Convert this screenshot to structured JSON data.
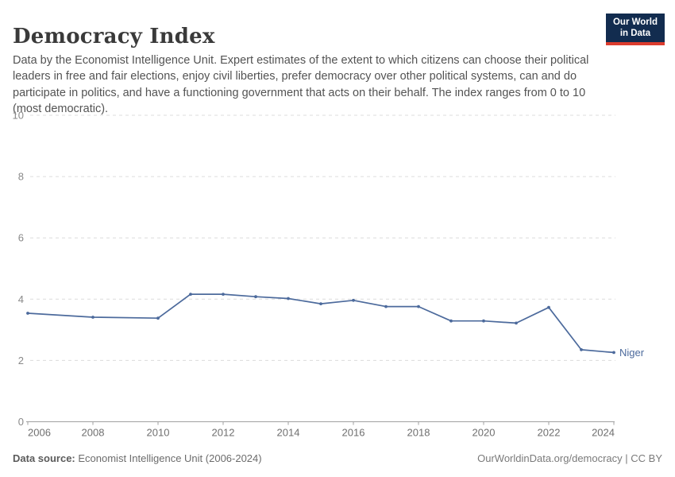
{
  "header": {
    "title": "Democracy Index",
    "subtitle": "Data by the Economist Intelligence Unit. Expert estimates of the extent to which citizens can choose their political leaders in free and fair elections, enjoy civil liberties, prefer democracy over other political systems, can and do participate in politics, and have a functioning government that acts on their behalf. The index ranges from 0 to 10 (most democratic).",
    "logo": {
      "line1": "Our World",
      "line2": "in Data",
      "bg_color": "#122c4f",
      "bar_color": "#dc3c2e"
    }
  },
  "footer": {
    "source_label": "Data source:",
    "source_value": " Economist Intelligence Unit (2006-2024)",
    "right_text": "OurWorldinData.org/democracy | CC BY"
  },
  "chart_data": {
    "type": "line",
    "title": "Democracy Index",
    "xlabel": "",
    "ylabel": "",
    "xlim": [
      2006,
      2024
    ],
    "ylim": [
      0,
      10
    ],
    "x_ticks": [
      2006,
      2008,
      2010,
      2012,
      2014,
      2016,
      2018,
      2020,
      2022,
      2024
    ],
    "y_ticks": [
      0,
      2,
      4,
      6,
      8,
      10
    ],
    "grid": "horizontal-dashed",
    "legend_position": "end-of-line-label",
    "series": [
      {
        "name": "Niger",
        "color": "#4c6a9c",
        "x": [
          2006,
          2008,
          2010,
          2011,
          2012,
          2013,
          2014,
          2015,
          2016,
          2017,
          2018,
          2019,
          2020,
          2021,
          2022,
          2023,
          2024
        ],
        "values": [
          3.54,
          3.41,
          3.38,
          4.16,
          4.16,
          4.08,
          4.02,
          3.85,
          3.96,
          3.76,
          3.76,
          3.29,
          3.29,
          3.22,
          3.73,
          2.35,
          2.26
        ]
      }
    ],
    "colors": {
      "gridline": "#dcdcdc",
      "axis_line": "#a1a1a1",
      "y_tick_label": "#898989",
      "x_tick_label": "#6f6f6f"
    }
  }
}
